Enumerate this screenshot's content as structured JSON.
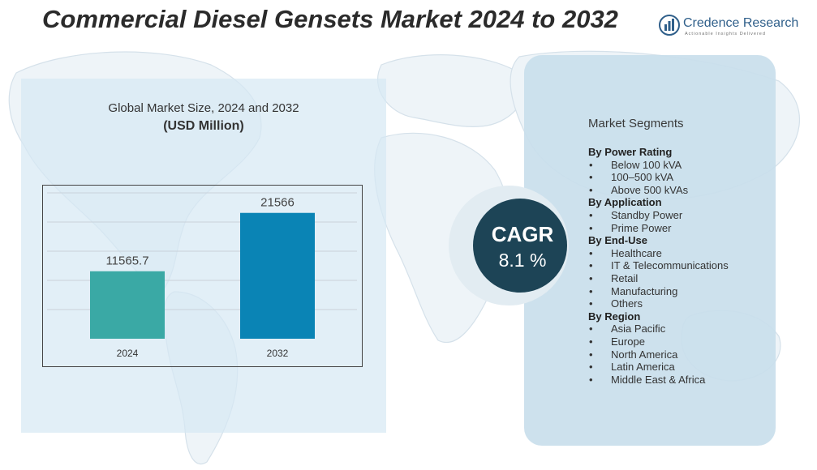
{
  "header": {
    "title": "Commercial Diesel Gensets Market  2024 to 2032",
    "brand_name": "Credence Research",
    "brand_tagline": "Actionable Insights Delivered"
  },
  "chart_data": {
    "type": "bar",
    "title": "Global Market Size, 2024 and 2032",
    "subtitle": "(USD Million)",
    "categories": [
      "2024",
      "2032"
    ],
    "values": [
      11565.7,
      21566
    ],
    "value_labels": [
      "11565.7",
      "21566"
    ],
    "colors": [
      "#3aa9a5",
      "#0a84b5"
    ],
    "ylim": [
      0,
      25000
    ],
    "grid": true,
    "legend": "none"
  },
  "cagr": {
    "label": "CAGR",
    "value": "8.1  %"
  },
  "segments": {
    "heading": "Market Segments",
    "bullet": "•",
    "groups": [
      {
        "title": "By  Power Rating",
        "items": [
          "Below 100 kVA",
          "100–500 kVA",
          "Above 500 kVAs"
        ]
      },
      {
        "title": "By Application",
        "items": [
          "Standby Power",
          "Prime Power"
        ]
      },
      {
        "title": "By End-Use",
        "items": [
          "Healthcare",
          "IT & Telecommunications",
          "Retail",
          "Manufacturing",
          "Others"
        ]
      },
      {
        "title": "By Region",
        "items": [
          "Asia Pacific",
          "Europe",
          "North America",
          "Latin America",
          "Middle East & Africa"
        ]
      }
    ]
  },
  "colors": {
    "ring_outer": "#e2ecf2",
    "ring_inner": "#1d4456",
    "panel": "#d6e8f4"
  }
}
